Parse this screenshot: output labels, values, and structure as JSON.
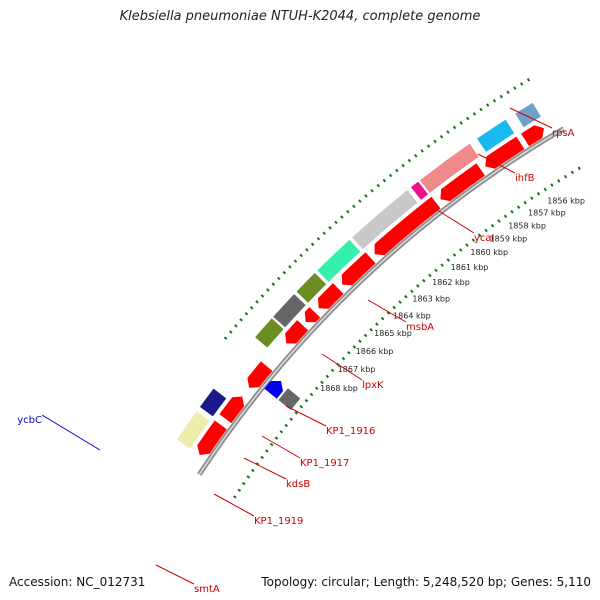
{
  "title": "Klebsiella pneumoniae NTUH-K2044, complete genome",
  "footer": {
    "accession": "Accession: NC_012731",
    "topology": "Topology: circular; Length: 5,248,520 bp; Genes: 5,110"
  },
  "colors": {
    "red_gene": "#ff0000",
    "backbone": "#8c8c8c",
    "tick_dots": "#117711",
    "label_red": "#cc0000",
    "label_blue": "#0000cc"
  },
  "scale_ticks": [
    "1856 kbp",
    "1857 kbp",
    "1858 kbp",
    "1859 kbp",
    "1860 kbp",
    "1861 kbp",
    "1862 kbp",
    "1863 kbp",
    "1864 kbp",
    "1865 kbp",
    "1866 kbp",
    "1867 kbp",
    "1868 kbp"
  ],
  "gene_labels": [
    {
      "name": "rpsA",
      "color": "#cc0000"
    },
    {
      "name": "ihfB",
      "color": "#cc0000"
    },
    {
      "name": "ycaI",
      "color": "#cc0000"
    },
    {
      "name": "msbA",
      "color": "#cc0000"
    },
    {
      "name": "lpxK",
      "color": "#cc0000"
    },
    {
      "name": "KP1_1916",
      "color": "#cc0000"
    },
    {
      "name": "KP1_1917",
      "color": "#cc0000"
    },
    {
      "name": "kdsB",
      "color": "#cc0000"
    },
    {
      "name": "KP1_1919",
      "color": "#cc0000"
    },
    {
      "name": "smtA",
      "color": "#cc0000"
    },
    {
      "name": "ycbC",
      "color": "#0000cc"
    }
  ]
}
